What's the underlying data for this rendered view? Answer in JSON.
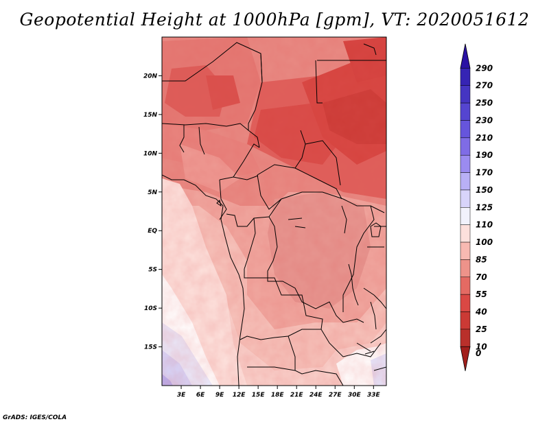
{
  "title": "Geopotential Height at 1000hPa [gpm], VT: 2020051612",
  "footer": "GrADS: IGES/COLA",
  "map": {
    "region": "Central Africa",
    "lat_range": [
      -20,
      25
    ],
    "lon_range": [
      0,
      35
    ],
    "lat_labels": [
      "20N",
      "15N",
      "10N",
      "5N",
      "EQ",
      "5S",
      "10S",
      "15S"
    ],
    "lat_values": [
      20,
      15,
      10,
      5,
      0,
      -5,
      -10,
      -15
    ],
    "lon_labels": [
      "3E",
      "6E",
      "9E",
      "12E",
      "15E",
      "18E",
      "21E",
      "24E",
      "27E",
      "30E",
      "33E"
    ],
    "lon_values": [
      3,
      6,
      9,
      12,
      15,
      18,
      21,
      24,
      27,
      30,
      33
    ]
  },
  "colorbar": {
    "labels": [
      "290",
      "270",
      "250",
      "230",
      "210",
      "190",
      "170",
      "150",
      "125",
      "110",
      "100",
      "85",
      "70",
      "55",
      "40",
      "25",
      "10",
      "0"
    ],
    "colors": [
      "#2a12a4",
      "#3624b4",
      "#4535c2",
      "#5545d0",
      "#6655dc",
      "#7f6ce6",
      "#9b8bf0",
      "#b9b0f6",
      "#d8d4fa",
      "#f2f2fc",
      "#fde0dc",
      "#f8b9b2",
      "#ee938a",
      "#e46a63",
      "#da4844",
      "#cb3a35",
      "#b9302b",
      "#a21f1c"
    ]
  }
}
